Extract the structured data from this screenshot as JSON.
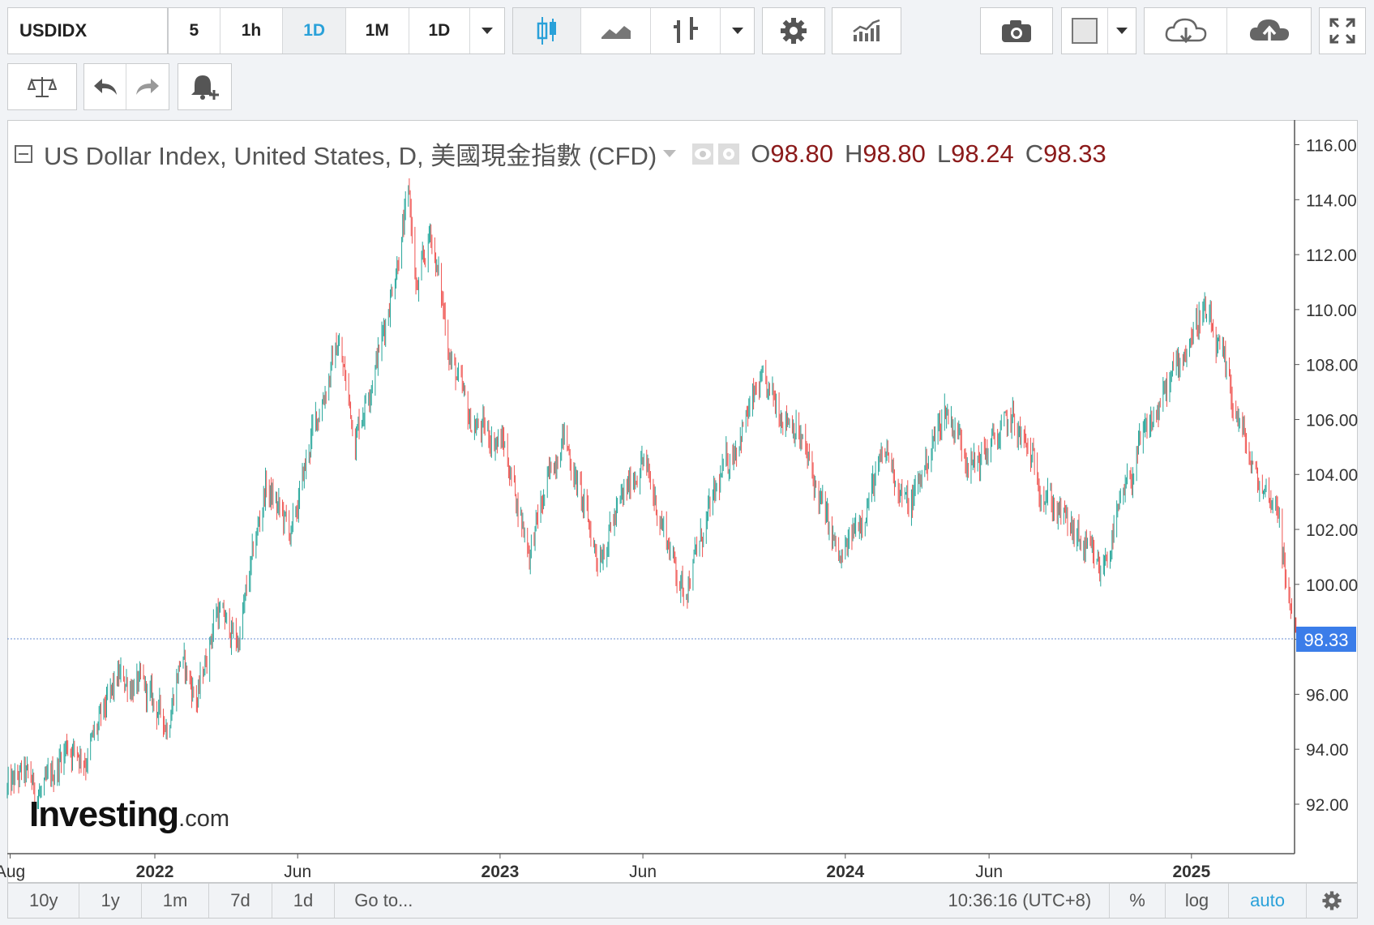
{
  "toolbar": {
    "symbol": "USDIDX",
    "intervals": [
      "5",
      "1h",
      "1D",
      "1M",
      "1D"
    ],
    "active_interval_index": 2
  },
  "legend": {
    "title": "US Dollar Index, United States, D, 美國現金指數 (CFD)",
    "o_label": "O",
    "o_value": "98.80",
    "h_label": "H",
    "h_value": "98.80",
    "l_label": "L",
    "l_value": "98.24",
    "c_label": "C",
    "c_value": "98.33"
  },
  "watermark": {
    "brand": "Investing",
    "suffix": ".com"
  },
  "bottombar": {
    "ranges": [
      "10y",
      "1y",
      "1m",
      "7d",
      "1d"
    ],
    "goto": "Go to...",
    "time": "10:36:16 (UTC+8)",
    "percent": "%",
    "log": "log",
    "auto": "auto"
  },
  "colors": {
    "up": "#26a69a",
    "down": "#ef5350",
    "accent": "#2aa1d9",
    "price_tag": "#3b7de9"
  },
  "chart_data": {
    "type": "candlestick",
    "title": "US Dollar Index, United States, D, 美國現金指數 (CFD)",
    "y_ticks": [
      "116.00",
      "114.00",
      "112.00",
      "110.00",
      "108.00",
      "106.00",
      "104.00",
      "102.00",
      "100.00",
      "98.00",
      "96.00",
      "94.00",
      "92.00"
    ],
    "ylim": [
      90.2,
      116.9
    ],
    "x_ticks": [
      {
        "date": "2021-08-01",
        "label": "Aug"
      },
      {
        "date": "2022-01-01",
        "label": "2022"
      },
      {
        "date": "2022-06-01",
        "label": "Jun"
      },
      {
        "date": "2023-01-01",
        "label": "2023"
      },
      {
        "date": "2023-06-01",
        "label": "Jun"
      },
      {
        "date": "2024-01-01",
        "label": "2024"
      },
      {
        "date": "2024-06-01",
        "label": "Jun"
      },
      {
        "date": "2025-01-01",
        "label": "2025"
      }
    ],
    "xlim": [
      "2021-07-29",
      "2025-04-20"
    ],
    "series_path": [
      [
        "2021-07-29",
        92.5
      ],
      [
        "2021-08-15",
        93.1
      ],
      [
        "2021-09-05",
        92.3
      ],
      [
        "2021-09-30",
        94.2
      ],
      [
        "2021-10-20",
        93.7
      ],
      [
        "2021-11-24",
        96.6
      ],
      [
        "2021-12-20",
        96.2
      ],
      [
        "2022-01-14",
        94.9
      ],
      [
        "2022-01-28",
        97.3
      ],
      [
        "2022-02-15",
        95.8
      ],
      [
        "2022-03-07",
        99.1
      ],
      [
        "2022-03-30",
        97.9
      ],
      [
        "2022-04-28",
        103.6
      ],
      [
        "2022-05-26",
        101.8
      ],
      [
        "2022-06-15",
        105.3
      ],
      [
        "2022-07-14",
        108.8
      ],
      [
        "2022-08-01",
        105.4
      ],
      [
        "2022-08-29",
        108.9
      ],
      [
        "2022-09-27",
        114.1
      ],
      [
        "2022-10-05",
        110.5
      ],
      [
        "2022-10-20",
        112.9
      ],
      [
        "2022-11-10",
        108.2
      ],
      [
        "2022-11-30",
        105.9
      ],
      [
        "2023-01-05",
        105.1
      ],
      [
        "2023-02-01",
        101.2
      ],
      [
        "2023-03-08",
        105.6
      ],
      [
        "2023-04-14",
        101.0
      ],
      [
        "2023-05-31",
        104.6
      ],
      [
        "2023-07-14",
        99.7
      ],
      [
        "2023-08-25",
        104.1
      ],
      [
        "2023-10-03",
        107.2
      ],
      [
        "2023-11-10",
        105.8
      ],
      [
        "2023-12-27",
        100.7
      ],
      [
        "2024-02-14",
        104.8
      ],
      [
        "2024-03-08",
        102.7
      ],
      [
        "2024-04-16",
        106.4
      ],
      [
        "2024-05-16",
        104.3
      ],
      [
        "2024-06-26",
        106.0
      ],
      [
        "2024-08-02",
        103.2
      ],
      [
        "2024-09-27",
        100.4
      ],
      [
        "2024-11-06",
        104.8
      ],
      [
        "2025-01-13",
        110.0
      ],
      [
        "2025-02-03",
        108.0
      ],
      [
        "2025-03-10",
        103.8
      ],
      [
        "2025-04-04",
        102.8
      ],
      [
        "2025-04-11",
        99.7
      ],
      [
        "2025-04-17",
        99.2
      ]
    ],
    "last": {
      "date": "2025-04-21",
      "open": 98.8,
      "high": 98.8,
      "low": 98.24,
      "close": 98.33
    },
    "last_price_label": "98.33"
  }
}
